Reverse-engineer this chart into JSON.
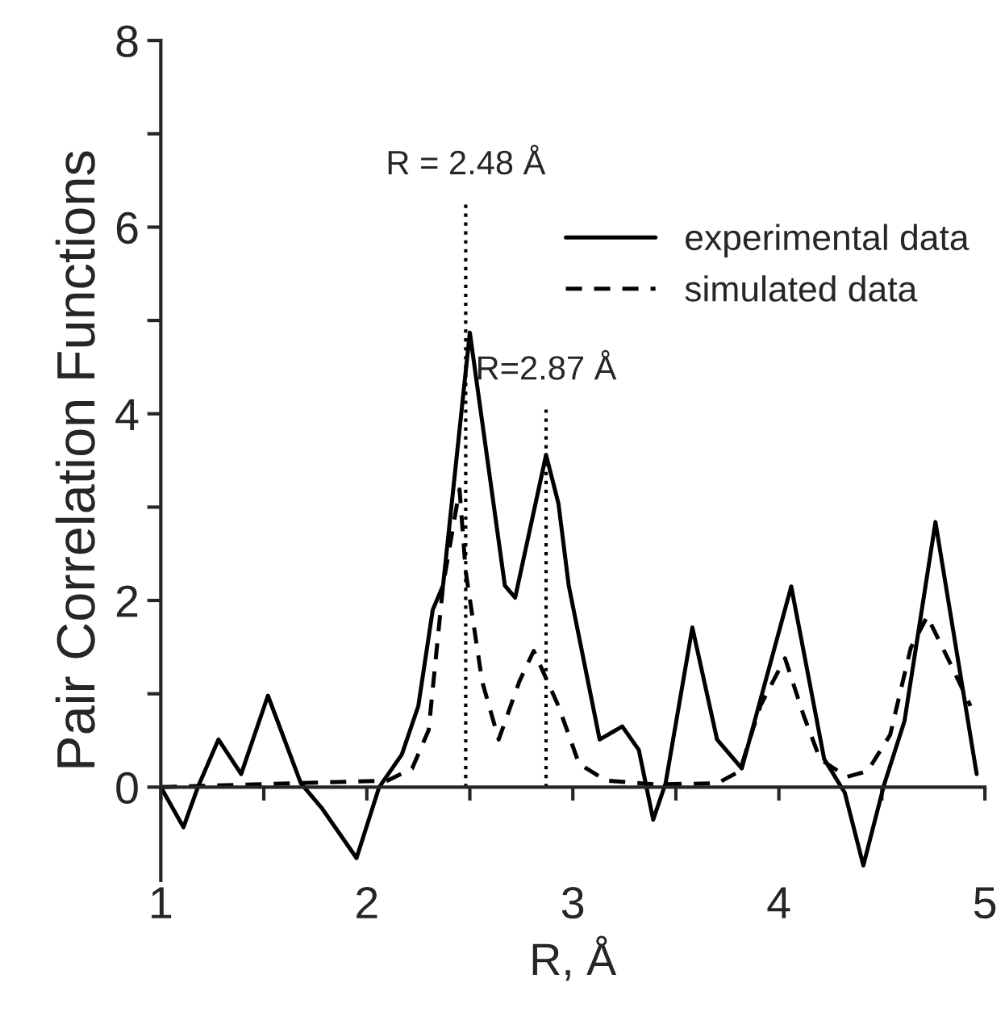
{
  "chart_data": {
    "type": "line",
    "xlabel": "R, Å",
    "ylabel": "Pair Correlation Functions",
    "xlim": [
      1,
      5
    ],
    "ylim": [
      -1,
      8
    ],
    "xticks": [
      1,
      {
        "value": 1.5,
        "label": null
      },
      2,
      {
        "value": 2.5,
        "label": null
      },
      3,
      {
        "value": 3.5,
        "label": null
      },
      4,
      {
        "value": 4.5,
        "label": null
      },
      5
    ],
    "yticks": [
      0,
      {
        "value": 1,
        "label": null
      },
      2,
      {
        "value": 3,
        "label": null
      },
      4,
      {
        "value": 5,
        "label": null
      },
      6,
      {
        "value": 7,
        "label": null
      },
      8
    ],
    "grid": false,
    "legend": "top right",
    "series": [
      {
        "name": "experimental data",
        "color": "#000000",
        "line_style": "solid",
        "x": [
          1.0,
          1.11,
          1.18,
          1.28,
          1.39,
          1.52,
          1.68,
          1.78,
          1.95,
          2.06,
          2.17,
          2.25,
          2.32,
          2.37,
          2.5,
          2.67,
          2.72,
          2.87,
          2.93,
          2.98,
          3.13,
          3.24,
          3.32,
          3.39,
          3.45,
          3.58,
          3.7,
          3.82,
          4.06,
          4.22,
          4.32,
          4.41,
          4.51,
          4.61,
          4.76,
          4.96
        ],
        "values": [
          0.0,
          -0.43,
          0.0,
          0.51,
          0.14,
          0.98,
          0.04,
          -0.22,
          -0.76,
          0.0,
          0.35,
          0.87,
          1.9,
          2.16,
          4.87,
          2.16,
          2.03,
          3.56,
          3.04,
          2.16,
          0.51,
          0.65,
          0.4,
          -0.35,
          0.04,
          1.71,
          0.51,
          0.2,
          2.15,
          0.3,
          -0.06,
          -0.84,
          0.02,
          0.71,
          2.84,
          0.14
        ]
      },
      {
        "name": "simulated data",
        "color": "#000000",
        "line_style": "dashed",
        "x": [
          1.0,
          2.1,
          2.22,
          2.3,
          2.37,
          2.45,
          2.48,
          2.56,
          2.64,
          2.74,
          2.81,
          2.93,
          3.03,
          3.16,
          3.4,
          3.7,
          3.81,
          3.91,
          4.03,
          4.12,
          4.2,
          4.33,
          4.43,
          4.54,
          4.64,
          4.72,
          4.82,
          4.93
        ],
        "values": [
          0.0,
          0.07,
          0.2,
          0.61,
          2.16,
          3.19,
          2.31,
          1.13,
          0.51,
          1.13,
          1.46,
          0.87,
          0.25,
          0.07,
          0.03,
          0.04,
          0.17,
          0.87,
          1.38,
          0.77,
          0.3,
          0.11,
          0.17,
          0.56,
          1.49,
          1.83,
          1.38,
          0.87
        ]
      }
    ],
    "ref_lines": [
      {
        "axis": "x",
        "value": 2.48,
        "line_style": "dotted"
      },
      {
        "axis": "x",
        "value": 2.87,
        "line_style": "dotted"
      }
    ],
    "annotations": [
      {
        "text": "R = 2.48 Å",
        "x": 2.48,
        "y": 6.3
      },
      {
        "text": "R=2.87 Å",
        "x": 2.87,
        "y": 4.1
      }
    ]
  }
}
